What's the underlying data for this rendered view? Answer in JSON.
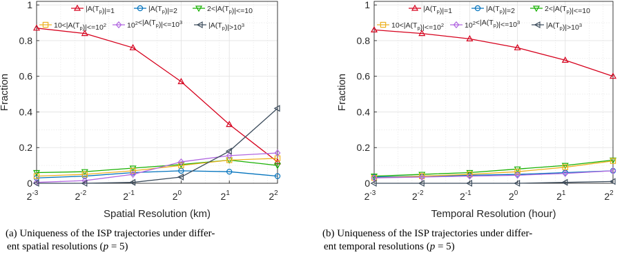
{
  "colors": {
    "series": [
      "#d6001c",
      "#0072bd",
      "#16b000",
      "#edb120",
      "#b166e0",
      "#3b4b5b"
    ],
    "grid": "#e3e3e3",
    "axis": "#262626"
  },
  "captions": [
    {
      "line1": "(a) Uniqueness of the ISP trajectories under differ-",
      "line2": "ent spatial resolutions (",
      "var": "p",
      "eq": " = 5)"
    },
    {
      "line1": "(b) Uniqueness of the ISP trajectories under differ-",
      "line2": "ent temporal resolutions (",
      "var": "p",
      "eq": " = 5)"
    }
  ],
  "chart_data": [
    {
      "type": "line",
      "xlabel": "Spatial Resolution (km)",
      "ylabel": "Fraction",
      "x_base": "2",
      "x_exponents": [
        "-3",
        "-2",
        "-1",
        "0",
        "1",
        "2"
      ],
      "x": [
        -3,
        -2,
        -1,
        0,
        1,
        2
      ],
      "ylim": [
        0,
        1.02
      ],
      "yticks": [
        "0",
        "0.2",
        "0.4",
        "0.6",
        "0.8",
        "1"
      ],
      "grid": true,
      "legend_position": "top",
      "series": [
        {
          "name": "|A(Tp)|=1",
          "marker": "triangle-up",
          "values": [
            0.87,
            0.84,
            0.76,
            0.57,
            0.33,
            0.12
          ]
        },
        {
          "name": "|A(Tp)|=2",
          "marker": "circle",
          "values": [
            0.03,
            0.04,
            0.06,
            0.07,
            0.065,
            0.04
          ]
        },
        {
          "name": "2<|A(Tp)|<=10",
          "marker": "triangle-down",
          "values": [
            0.06,
            0.065,
            0.085,
            0.105,
            0.13,
            0.1
          ]
        },
        {
          "name": "10<|A(Tp)|<=10^2",
          "marker": "square",
          "values": [
            0.04,
            0.05,
            0.07,
            0.1,
            0.13,
            0.14
          ]
        },
        {
          "name": "10^2<|A(Tp)|<=10^3",
          "marker": "diamond",
          "values": [
            0.005,
            0.015,
            0.05,
            0.12,
            0.155,
            0.17
          ]
        },
        {
          "name": "|A(Tp)|>10^3",
          "marker": "triangle-left",
          "values": [
            0,
            0,
            0.005,
            0.035,
            0.18,
            0.42
          ]
        }
      ]
    },
    {
      "type": "line",
      "xlabel": "Temporal Resolution (hour)",
      "ylabel": "Fraction",
      "x_base": "2",
      "x_exponents": [
        "-3",
        "-2",
        "-1",
        "0",
        "1",
        "2"
      ],
      "x": [
        -3,
        -2,
        -1,
        0,
        1,
        2
      ],
      "ylim": [
        0,
        1.02
      ],
      "yticks": [
        "0",
        "0.2",
        "0.4",
        "0.6",
        "0.8",
        "1"
      ],
      "grid": true,
      "legend_position": "top",
      "series": [
        {
          "name": "|A(Tp)|=1",
          "marker": "triangle-up",
          "values": [
            0.86,
            0.84,
            0.81,
            0.76,
            0.69,
            0.6
          ]
        },
        {
          "name": "|A(Tp)|=2",
          "marker": "circle",
          "values": [
            0.035,
            0.04,
            0.045,
            0.05,
            0.06,
            0.07
          ]
        },
        {
          "name": "2<|A(Tp)|<=10",
          "marker": "triangle-down",
          "values": [
            0.04,
            0.05,
            0.06,
            0.08,
            0.1,
            0.13
          ]
        },
        {
          "name": "10<|A(Tp)|<=10^2",
          "marker": "square",
          "values": [
            0.03,
            0.04,
            0.05,
            0.065,
            0.09,
            0.125
          ]
        },
        {
          "name": "10^2<|A(Tp)|<=10^3",
          "marker": "diamond",
          "values": [
            0.03,
            0.035,
            0.04,
            0.045,
            0.055,
            0.07
          ]
        },
        {
          "name": "|A(Tp)|>10^3",
          "marker": "triangle-left",
          "values": [
            0,
            0,
            0,
            0,
            0.005,
            0.01
          ]
        }
      ]
    }
  ]
}
